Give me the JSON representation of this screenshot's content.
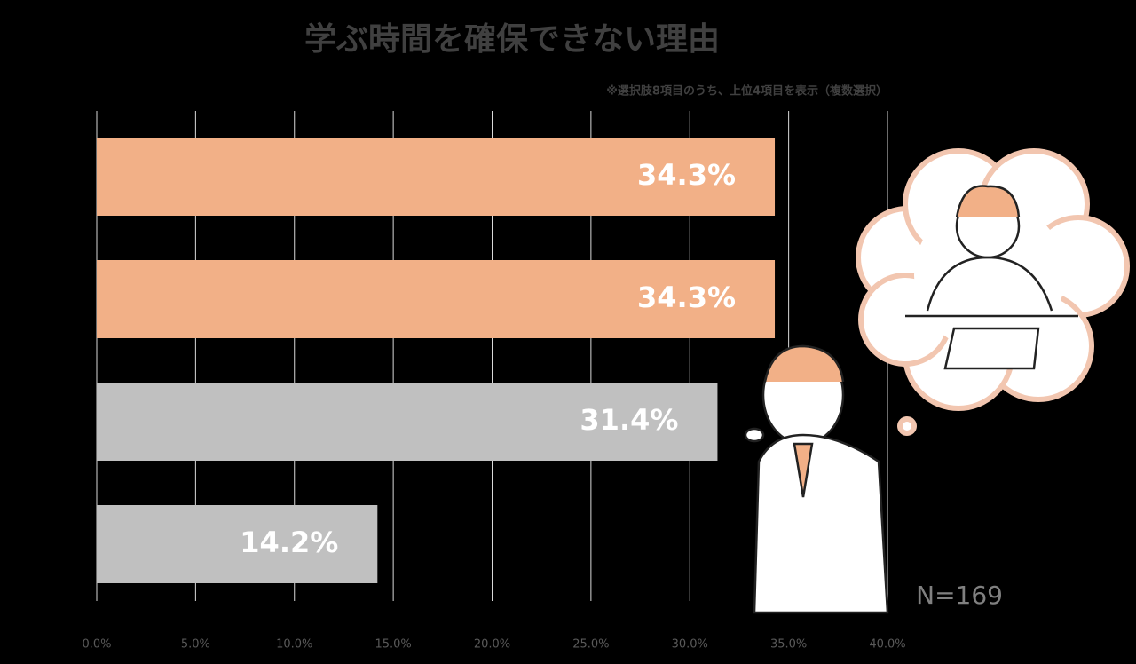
{
  "chart_data": {
    "type": "hbar",
    "title": "学ぶ時間を確保できない理由",
    "subtitle": "※選択肢8項目のうち、上位4項目を表示（複数選択）",
    "annotation": "N=169",
    "categories": [
      null,
      null,
      null,
      null
    ],
    "values": [
      34.3,
      34.3,
      31.4,
      14.2
    ],
    "value_labels": [
      "34.3%",
      "34.3%",
      "31.4%",
      "14.2%"
    ],
    "colors": [
      "#f2b087",
      "#f2b087",
      "#c0c0c0",
      "#c0c0c0"
    ],
    "xlim": [
      0,
      40
    ],
    "xticks": [
      {
        "value": 0,
        "label": "0.0%"
      },
      {
        "value": 5,
        "label": "5.0%"
      },
      {
        "value": 10,
        "label": "10.0%"
      },
      {
        "value": 15,
        "label": "15.0%"
      },
      {
        "value": 20,
        "label": "20.0%"
      },
      {
        "value": 25,
        "label": "25.0%"
      },
      {
        "value": 30,
        "label": "30.0%"
      },
      {
        "value": 35,
        "label": "35.0%"
      },
      {
        "value": 40,
        "label": "40.0%"
      }
    ],
    "grid": true
  }
}
